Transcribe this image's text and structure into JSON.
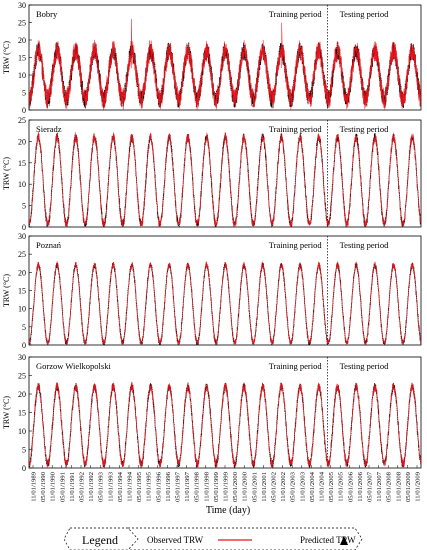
{
  "chart_data": [
    {
      "type": "line",
      "station": "Bobry",
      "ylabel": "TRW (°C)",
      "ylim": [
        0,
        30
      ],
      "yticks": [
        0,
        5,
        10,
        15,
        20,
        25,
        30
      ],
      "xlim": [
        "1989-01-11",
        "2009-12-31"
      ],
      "period_split": "2005-01-01",
      "period_labels": [
        "Training period",
        "Testing period"
      ],
      "seasonal_model": {
        "summer_peak": 17,
        "winter_low": 3,
        "noise": 3.2,
        "spikes": [
          26,
          25
        ]
      },
      "series": [
        {
          "name": "Observed TRW"
        },
        {
          "name": "Predicted TRW"
        }
      ]
    },
    {
      "type": "line",
      "station": "Sieradz",
      "ylabel": "TRW (°C)",
      "ylim": [
        0,
        25
      ],
      "yticks": [
        0,
        5,
        10,
        15,
        20,
        25
      ],
      "xlim": [
        "1989-01-11",
        "2009-12-31"
      ],
      "period_split": "2005-01-01",
      "period_labels": [
        "Training period",
        "Testing period"
      ],
      "seasonal_model": {
        "summer_peak": 21,
        "winter_low": 0.5,
        "noise": 1.2
      },
      "series": [
        {
          "name": "Observed TRW"
        },
        {
          "name": "Predicted TRW"
        }
      ]
    },
    {
      "type": "line",
      "station": "Poznań",
      "ylabel": "TRW (°C)",
      "ylim": [
        0,
        30
      ],
      "yticks": [
        0,
        5,
        10,
        15,
        20,
        25,
        30
      ],
      "xlim": [
        "1989-01-11",
        "2009-12-31"
      ],
      "period_split": "2005-01-01",
      "period_labels": [
        "Training period",
        "Testing period"
      ],
      "seasonal_model": {
        "summer_peak": 22,
        "winter_low": 0.5,
        "noise": 1.0
      },
      "series": [
        {
          "name": "Observed TRW"
        },
        {
          "name": "Predicted TRW"
        }
      ]
    },
    {
      "type": "line",
      "station": "Gorzow Wielkopolski",
      "ylabel": "TRW (°C)",
      "ylim": [
        0,
        30
      ],
      "yticks": [
        0,
        5,
        10,
        15,
        20,
        25,
        30
      ],
      "xlim": [
        "1989-01-11",
        "2009-12-31"
      ],
      "period_split": "2005-01-01",
      "period_labels": [
        "Training period",
        "Testing period"
      ],
      "seasonal_model": {
        "summer_peak": 22,
        "winter_low": 1,
        "noise": 1.3
      },
      "series": [
        {
          "name": "Observed TRW"
        },
        {
          "name": "Predicted TRW"
        }
      ]
    }
  ],
  "x_axis": {
    "label": "Time (day)",
    "ticks": [
      "11/01/1989",
      "05/01/1990",
      "11/01/1990",
      "05/01/1991",
      "11/01/1991",
      "05/01/1992",
      "11/01/1992",
      "05/01/1993",
      "11/01/1993",
      "05/01/1994",
      "11/01/1994",
      "05/01/1995",
      "11/01/1995",
      "05/01/1996",
      "11/01/1996",
      "05/01/1997",
      "11/01/1997",
      "05/01/1998",
      "11/01/1998",
      "05/01/1999",
      "11/01/1999",
      "05/01/2000",
      "11/01/2000",
      "05/01/2001",
      "11/01/2001",
      "05/01/2002",
      "11/01/2002",
      "05/01/2003",
      "11/01/2003",
      "05/01/2004",
      "11/01/2004",
      "05/01/2005",
      "11/01/2005",
      "05/01/2006",
      "11/01/2006",
      "05/01/2007",
      "11/01/2007",
      "05/01/2008",
      "11/01/2008",
      "05/01/2009",
      "11/01/2009"
    ]
  },
  "legend": {
    "title": "Legend",
    "items": [
      {
        "label": "Observed TRW",
        "symbol": "line",
        "color": "#e8141b"
      },
      {
        "label": "Predicted TRW",
        "symbol": "triangle",
        "color": "#000000"
      }
    ]
  },
  "colors": {
    "observed": "#e8141b",
    "predicted": "#000000"
  }
}
